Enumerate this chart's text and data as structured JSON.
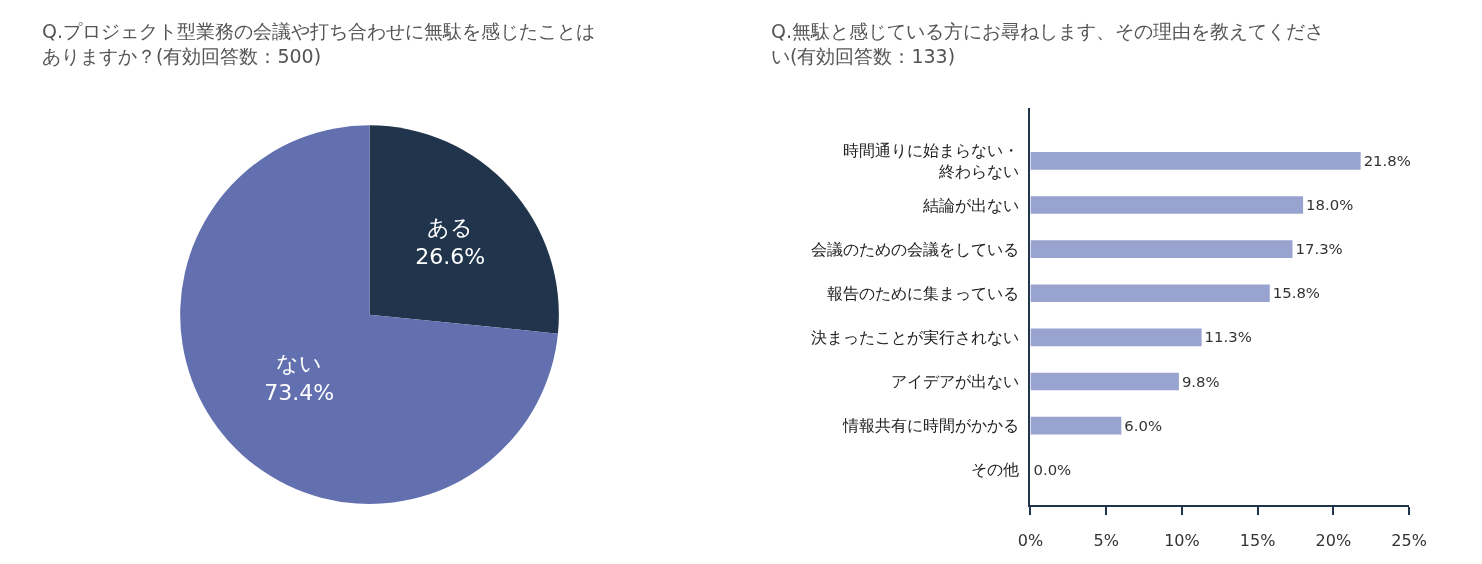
{
  "chart_data": [
    {
      "type": "pie",
      "title": "Q.プロジェクト型業務の会議や打ち合わせに無駄を感じたことはありますか？(有効回答数：500)",
      "categories": [
        "ある",
        "ない"
      ],
      "values": [
        26.6,
        73.4
      ],
      "colors": [
        "#20344c",
        "#6270b0"
      ],
      "value_labels": [
        "26.6%",
        "73.4%"
      ],
      "legend": false
    },
    {
      "type": "bar",
      "orientation": "horizontal",
      "title": "Q.無駄と感じている方にお尋ねします、その理由を教えてください(有効回答数：133)",
      "categories": [
        "時間通りに始まらない・終わらない",
        "結論が出ない",
        "会議のための会議をしている",
        "報告のために集まっている",
        "決まったことが実行されない",
        "アイデアが出ない",
        "情報共有に時間がかかる",
        "その他"
      ],
      "values": [
        21.8,
        18.0,
        17.3,
        15.8,
        11.3,
        9.8,
        6.0,
        0.0
      ],
      "value_labels": [
        "21.8%",
        "18.0%",
        "17.3%",
        "15.8%",
        "11.3%",
        "9.8%",
        "6.0%",
        "0.0%"
      ],
      "color": "#98a3cf",
      "xlim": [
        0,
        25
      ],
      "xticks": [
        {
          "value": 0,
          "label": "0%"
        },
        {
          "value": 5,
          "label": "5%"
        },
        {
          "value": 10,
          "label": "10%"
        },
        {
          "value": 15,
          "label": "15%"
        },
        {
          "value": 20,
          "label": "20%"
        },
        {
          "value": 25,
          "label": "25%"
        }
      ],
      "legend": false
    }
  ]
}
